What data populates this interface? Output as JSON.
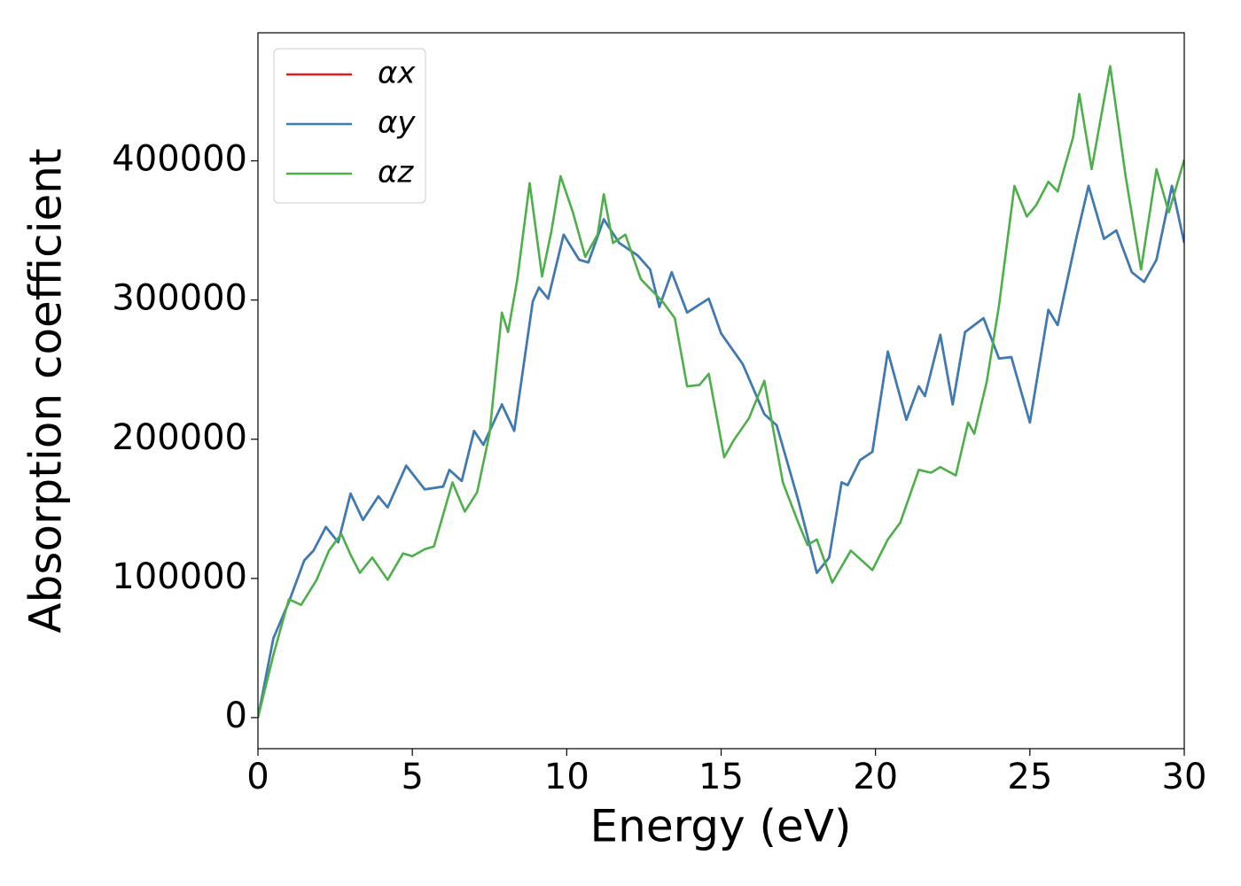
{
  "chart_data": {
    "type": "line",
    "xlabel": "Energy (eV)",
    "ylabel": "Absorption coefficient",
    "xlim": [
      0,
      30
    ],
    "ylim": [
      -22300,
      492000
    ],
    "xticks": [
      0,
      5,
      10,
      15,
      20,
      25,
      30
    ],
    "yticks": [
      0,
      100000,
      200000,
      300000,
      400000
    ],
    "legend": "upper left",
    "series": [
      {
        "name": "αx",
        "color": "#e41a1c",
        "x": [
          0,
          0.5,
          1.0,
          1.5,
          1.8,
          2.2,
          2.6,
          3.0,
          3.4,
          3.9,
          4.2,
          4.8,
          5.4,
          6.0,
          6.2,
          6.6,
          7.0,
          7.3,
          7.9,
          8.3,
          8.9,
          9.1,
          9.4,
          9.9,
          10.4,
          10.7,
          11.2,
          11.7,
          12.3,
          12.7,
          13.0,
          13.4,
          13.9,
          14.6,
          15.0,
          15.7,
          16.4,
          16.8,
          17.5,
          18.1,
          18.5,
          18.9,
          19.1,
          19.5,
          19.9,
          20.4,
          21.0,
          21.4,
          21.6,
          22.1,
          22.5,
          22.9,
          23.5,
          24.0,
          24.4,
          25.0,
          25.6,
          25.9,
          26.5,
          26.9,
          27.4,
          27.8,
          28.3,
          28.7,
          29.1,
          29.6,
          30.0
        ],
        "values": [
          0,
          57000,
          83000,
          113000,
          120000,
          137000,
          126000,
          161000,
          142000,
          159000,
          151000,
          181000,
          164000,
          166000,
          178000,
          170000,
          206000,
          196000,
          225000,
          206000,
          299000,
          309000,
          301000,
          347000,
          329000,
          327000,
          358000,
          341000,
          332000,
          322000,
          295000,
          320000,
          291000,
          301000,
          276000,
          254000,
          218000,
          210000,
          156000,
          104000,
          115000,
          169000,
          167000,
          185000,
          191000,
          263000,
          214000,
          238000,
          231000,
          275000,
          225000,
          277000,
          287000,
          258000,
          259000,
          212000,
          293000,
          282000,
          344000,
          382000,
          344000,
          350000,
          320000,
          313000,
          329000,
          382000,
          341000
        ]
      },
      {
        "name": "αy",
        "color": "#377eb8",
        "x": [
          0,
          0.5,
          1.0,
          1.5,
          1.8,
          2.2,
          2.6,
          3.0,
          3.4,
          3.9,
          4.2,
          4.8,
          5.4,
          6.0,
          6.2,
          6.6,
          7.0,
          7.3,
          7.9,
          8.3,
          8.9,
          9.1,
          9.4,
          9.9,
          10.4,
          10.7,
          11.2,
          11.7,
          12.3,
          12.7,
          13.0,
          13.4,
          13.9,
          14.6,
          15.0,
          15.7,
          16.4,
          16.8,
          17.5,
          18.1,
          18.5,
          18.9,
          19.1,
          19.5,
          19.9,
          20.4,
          21.0,
          21.4,
          21.6,
          22.1,
          22.5,
          22.9,
          23.5,
          24.0,
          24.4,
          25.0,
          25.6,
          25.9,
          26.5,
          26.9,
          27.4,
          27.8,
          28.3,
          28.7,
          29.1,
          29.6,
          30.0
        ],
        "values": [
          0,
          57000,
          83000,
          113000,
          120000,
          137000,
          126000,
          161000,
          142000,
          159000,
          151000,
          181000,
          164000,
          166000,
          178000,
          170000,
          206000,
          196000,
          225000,
          206000,
          299000,
          309000,
          301000,
          347000,
          329000,
          327000,
          358000,
          341000,
          332000,
          322000,
          295000,
          320000,
          291000,
          301000,
          276000,
          254000,
          218000,
          210000,
          156000,
          104000,
          115000,
          169000,
          167000,
          185000,
          191000,
          263000,
          214000,
          238000,
          231000,
          275000,
          225000,
          277000,
          287000,
          258000,
          259000,
          212000,
          293000,
          282000,
          344000,
          382000,
          344000,
          350000,
          320000,
          313000,
          329000,
          382000,
          341000
        ]
      },
      {
        "name": "αz",
        "color": "#4daf4a",
        "x": [
          0,
          0.5,
          1.0,
          1.4,
          1.9,
          2.3,
          2.7,
          3.0,
          3.3,
          3.7,
          4.2,
          4.7,
          5.0,
          5.4,
          5.7,
          6.3,
          6.7,
          7.1,
          7.5,
          7.9,
          8.1,
          8.4,
          8.8,
          9.2,
          9.5,
          9.8,
          10.2,
          10.6,
          11.0,
          11.2,
          11.5,
          11.9,
          12.4,
          13.1,
          13.5,
          13.9,
          14.3,
          14.6,
          15.1,
          15.4,
          15.9,
          16.4,
          17.0,
          17.5,
          17.8,
          18.1,
          18.6,
          19.2,
          19.9,
          20.4,
          20.8,
          21.4,
          21.8,
          22.1,
          22.6,
          23.0,
          23.2,
          23.6,
          24.0,
          24.5,
          24.9,
          25.2,
          25.6,
          25.9,
          26.4,
          26.6,
          27.0,
          27.6,
          28.1,
          28.6,
          29.1,
          29.5,
          30.0
        ],
        "values": [
          0,
          45000,
          85000,
          81000,
          99000,
          120000,
          132000,
          117000,
          104000,
          115000,
          99000,
          118000,
          116000,
          121000,
          123000,
          169000,
          148000,
          162000,
          204000,
          291000,
          277000,
          315000,
          384000,
          317000,
          349000,
          389000,
          363000,
          331000,
          347000,
          376000,
          341000,
          347000,
          315000,
          299000,
          287000,
          238000,
          239000,
          247000,
          187000,
          199000,
          215000,
          242000,
          169000,
          140000,
          124000,
          128000,
          97000,
          120000,
          106000,
          128000,
          140000,
          178000,
          176000,
          180000,
          174000,
          212000,
          204000,
          241000,
          296000,
          382000,
          360000,
          368000,
          385000,
          378000,
          417000,
          448000,
          394000,
          468000,
          389000,
          322000,
          394000,
          363000,
          401000
        ]
      }
    ]
  }
}
